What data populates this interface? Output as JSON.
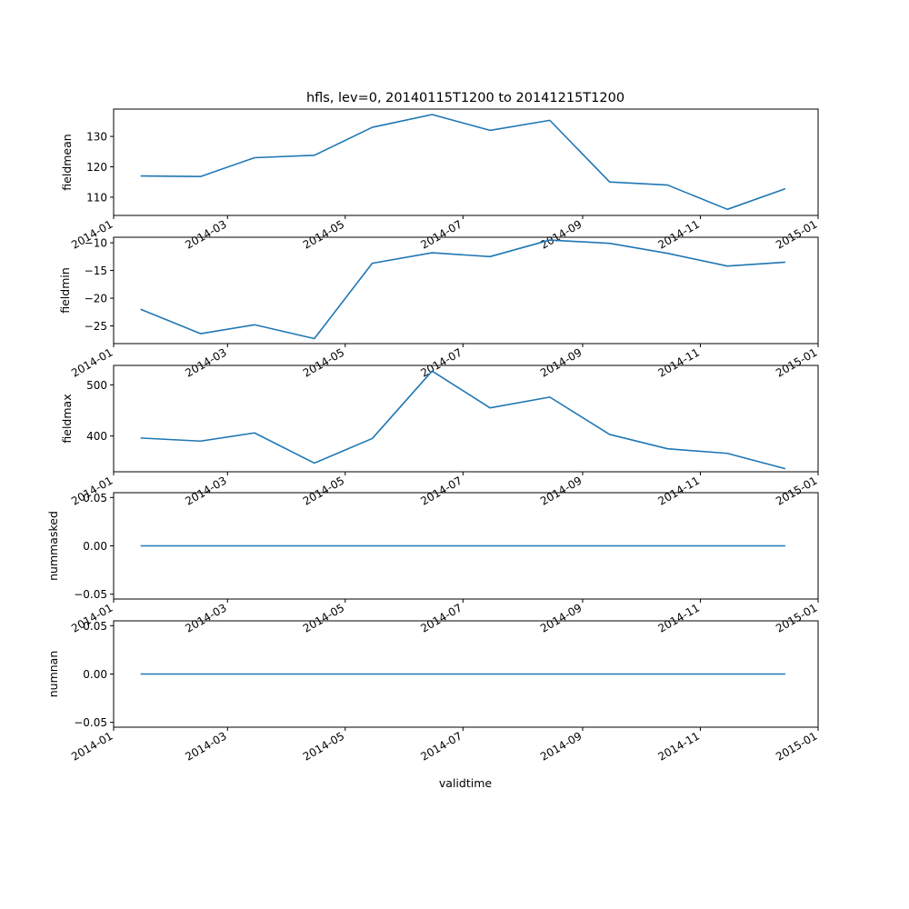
{
  "title": "hfls, lev=0, 20140115T1200 to 20141215T1200",
  "colors": {
    "line": "#1f77b4",
    "axes": "#000000",
    "background": "#ffffff"
  },
  "chart_data": {
    "type": "line",
    "xlabel": "validtime",
    "x": [
      "2014-01-15",
      "2014-02-15",
      "2014-03-15",
      "2014-04-15",
      "2014-05-15",
      "2014-06-15",
      "2014-07-15",
      "2014-08-15",
      "2014-09-15",
      "2014-10-15",
      "2014-11-15",
      "2014-12-15"
    ],
    "xlim": [
      "2014-01-01",
      "2015-01-01"
    ],
    "xticks": [
      "2014-01",
      "2014-03",
      "2014-05",
      "2014-07",
      "2014-09",
      "2014-11",
      "2015-01"
    ],
    "grid": false,
    "panels": [
      {
        "ylabel": "fieldmean",
        "ylim": [
          104,
          139
        ],
        "yticks": [
          "110",
          "120",
          "130"
        ],
        "yvalues": [
          110,
          120,
          130
        ],
        "values": [
          117.0,
          116.8,
          123.0,
          123.8,
          133.0,
          137.2,
          132.0,
          135.3,
          115.0,
          114.0,
          106.0,
          112.8
        ]
      },
      {
        "ylabel": "fieldmin",
        "ylim": [
          -28.2,
          -9.0
        ],
        "yticks": [
          "−25",
          "−20",
          "−15",
          "−10"
        ],
        "yvalues": [
          -25,
          -20,
          -15,
          -10
        ],
        "values": [
          -22.0,
          -26.4,
          -24.8,
          -27.3,
          -13.7,
          -11.8,
          -12.5,
          -9.5,
          -10.1,
          -11.9,
          -14.2,
          -13.5
        ]
      },
      {
        "ylabel": "fieldmax",
        "ylim": [
          330,
          538
        ],
        "yticks": [
          "400",
          "500"
        ],
        "yvalues": [
          400,
          500
        ],
        "values": [
          396,
          390,
          406,
          347,
          395,
          527,
          455,
          476,
          403,
          375,
          366,
          336
        ]
      },
      {
        "ylabel": "nummasked",
        "ylim": [
          -0.055,
          0.055
        ],
        "yticks": [
          "−0.05",
          "0.00",
          "0.05"
        ],
        "yvalues": [
          -0.05,
          0.0,
          0.05
        ],
        "values": [
          0,
          0,
          0,
          0,
          0,
          0,
          0,
          0,
          0,
          0,
          0,
          0
        ]
      },
      {
        "ylabel": "numnan",
        "ylim": [
          -0.055,
          0.055
        ],
        "yticks": [
          "−0.05",
          "0.00",
          "0.05"
        ],
        "yvalues": [
          -0.05,
          0.0,
          0.05
        ],
        "values": [
          0,
          0,
          0,
          0,
          0,
          0,
          0,
          0,
          0,
          0,
          0,
          0
        ]
      }
    ]
  }
}
